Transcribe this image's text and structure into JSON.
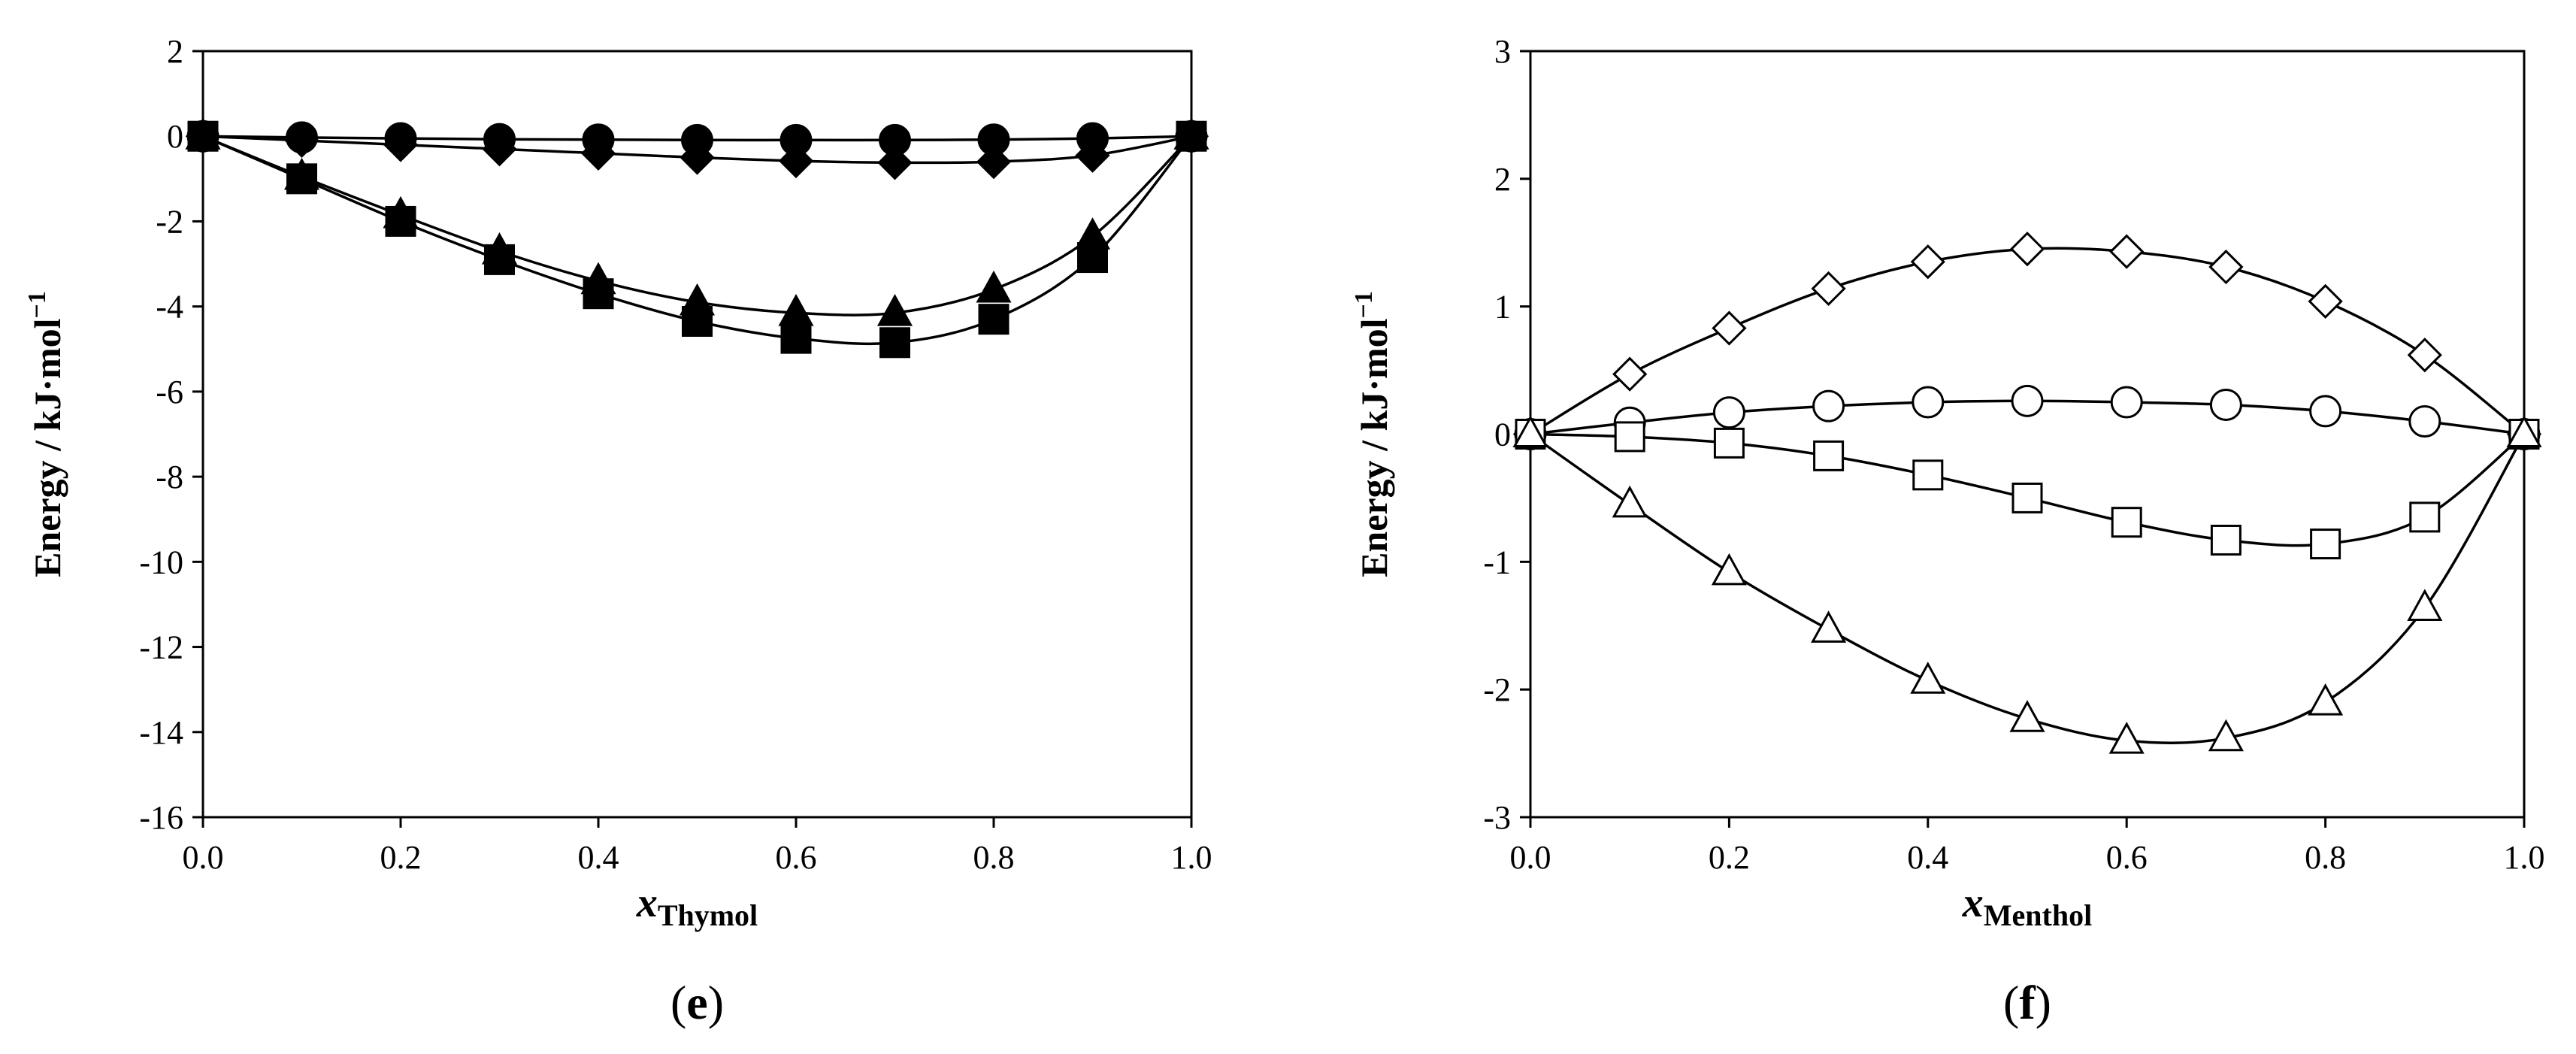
{
  "chart_data": [
    {
      "type": "line",
      "panel": "e",
      "panel_label_prefix": "(",
      "panel_label_suffix": ")",
      "ylabel": "Energy / kJ·mol",
      "ylabel_exponent": "−1",
      "xlabel_main": "x",
      "xlabel_sub": "Thymol",
      "xlim": [
        0,
        1
      ],
      "ylim": [
        -16,
        2
      ],
      "x_ticks": [
        0.0,
        0.2,
        0.4,
        0.6,
        0.8,
        1.0
      ],
      "x_tick_labels": [
        "0.0",
        "0.2",
        "0.4",
        "0.6",
        "0.8",
        "1.0"
      ],
      "y_ticks": [
        2,
        0,
        -2,
        -4,
        -6,
        -8,
        -10,
        -12,
        -14,
        -16
      ],
      "y_tick_labels": [
        "2",
        "0",
        "-2",
        "-4",
        "-6",
        "-8",
        "-10",
        "-12",
        "-14",
        "-16"
      ],
      "grid": false,
      "x": [
        0.0,
        0.1,
        0.2,
        0.3,
        0.4,
        0.5,
        0.6,
        0.7,
        0.8,
        0.9,
        1.0
      ],
      "series": [
        {
          "marker": "filled-circle",
          "values": [
            0.0,
            -0.03,
            -0.05,
            -0.07,
            -0.08,
            -0.09,
            -0.09,
            -0.09,
            -0.08,
            -0.05,
            0.0
          ]
        },
        {
          "marker": "filled-diamond",
          "values": [
            0.0,
            -0.1,
            -0.2,
            -0.3,
            -0.4,
            -0.5,
            -0.58,
            -0.62,
            -0.6,
            -0.45,
            0.0
          ]
        },
        {
          "marker": "filled-triangle",
          "values": [
            0.0,
            -0.95,
            -1.85,
            -2.7,
            -3.4,
            -3.9,
            -4.15,
            -4.15,
            -3.6,
            -2.35,
            0.0
          ]
        },
        {
          "marker": "filled-square",
          "values": [
            0.0,
            -1.0,
            -2.0,
            -2.9,
            -3.7,
            -4.35,
            -4.75,
            -4.85,
            -4.3,
            -2.85,
            0.0
          ]
        }
      ]
    },
    {
      "type": "line",
      "panel": "f",
      "panel_label_prefix": "(",
      "panel_label_suffix": ")",
      "ylabel": "Energy / kJ·mol",
      "ylabel_exponent": "−1",
      "xlabel_main": "x",
      "xlabel_sub": "Menthol",
      "xlim": [
        0,
        1
      ],
      "ylim": [
        -3,
        3
      ],
      "x_ticks": [
        0.0,
        0.2,
        0.4,
        0.6,
        0.8,
        1.0
      ],
      "x_tick_labels": [
        "0.0",
        "0.2",
        "0.4",
        "0.6",
        "0.8",
        "1.0"
      ],
      "y_ticks": [
        3,
        2,
        1,
        0,
        -1,
        -2,
        -3
      ],
      "y_tick_labels": [
        "3",
        "2",
        "1",
        "0",
        "-1",
        "-2",
        "-3"
      ],
      "grid": false,
      "x": [
        0.0,
        0.1,
        0.2,
        0.3,
        0.4,
        0.5,
        0.6,
        0.7,
        0.8,
        0.9,
        1.0
      ],
      "series": [
        {
          "marker": "open-diamond",
          "values": [
            0.0,
            0.47,
            0.83,
            1.14,
            1.35,
            1.45,
            1.43,
            1.31,
            1.04,
            0.62,
            0.0
          ]
        },
        {
          "marker": "open-circle",
          "values": [
            0.0,
            0.09,
            0.17,
            0.22,
            0.25,
            0.26,
            0.25,
            0.23,
            0.18,
            0.1,
            0.0
          ]
        },
        {
          "marker": "open-square",
          "values": [
            0.0,
            -0.02,
            -0.07,
            -0.17,
            -0.32,
            -0.5,
            -0.69,
            -0.83,
            -0.86,
            -0.65,
            0.0
          ]
        },
        {
          "marker": "open-triangle",
          "values": [
            0.0,
            -0.55,
            -1.08,
            -1.53,
            -1.93,
            -2.23,
            -2.4,
            -2.38,
            -2.1,
            -1.36,
            0.0
          ]
        }
      ]
    }
  ]
}
